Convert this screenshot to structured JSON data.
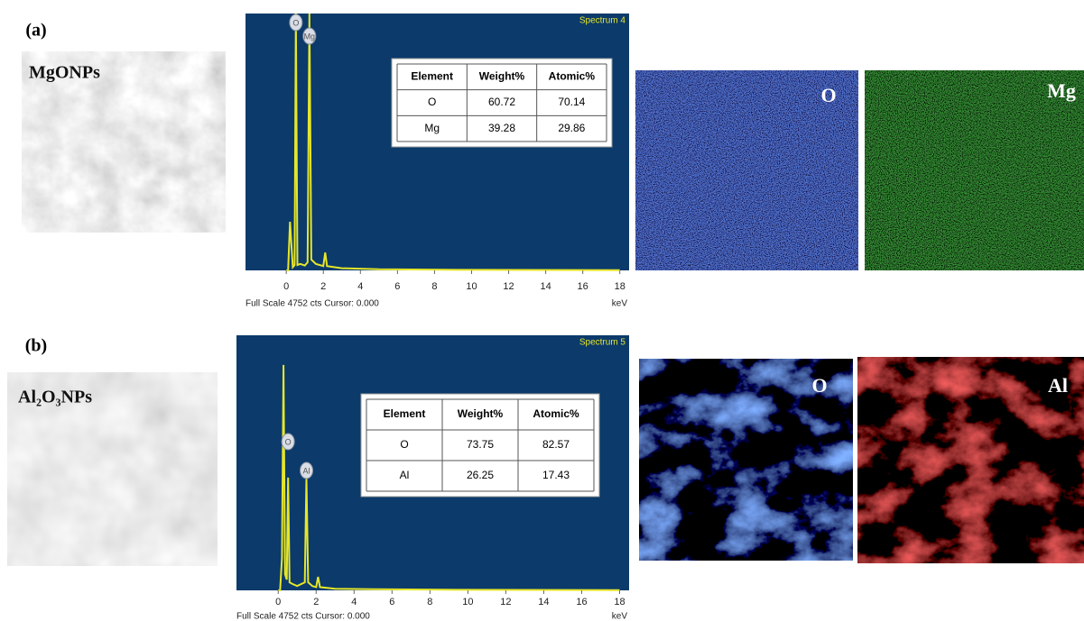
{
  "chart_data": [
    {
      "type": "line",
      "title": "Spectrum 4",
      "xlabel": "keV",
      "footer": "Full Scale 4752 cts Cursor: 0.000",
      "color": "#e6e62a",
      "x": [
        0,
        0.1,
        0.2,
        0.35,
        0.45,
        0.52,
        0.6,
        0.75,
        1.0,
        1.15,
        1.25,
        1.35,
        1.6,
        2.0,
        2.1,
        2.2,
        3,
        5,
        10,
        18
      ],
      "values": [
        0,
        0,
        900,
        60,
        100,
        4752,
        100,
        120,
        90,
        150,
        4752,
        200,
        120,
        80,
        330,
        80,
        40,
        20,
        10,
        5
      ],
      "xlim": [
        -2.2,
        18.5
      ],
      "ylim": [
        0,
        4752
      ],
      "xticks": [
        0,
        2,
        4,
        6,
        8,
        10,
        12,
        14,
        16,
        18
      ],
      "peaks": [
        {
          "label": "O",
          "x": 0.52
        },
        {
          "label": "Mg",
          "x": 1.25
        }
      ]
    },
    {
      "type": "line",
      "title": "Spectrum 5",
      "xlabel": "keV",
      "footer": "Full Scale 4752 cts Cursor: 0.000",
      "color": "#e6e62a",
      "x": [
        0,
        0.1,
        0.2,
        0.28,
        0.36,
        0.45,
        0.52,
        0.6,
        0.75,
        1.0,
        1.4,
        1.49,
        1.58,
        1.8,
        2.0,
        2.1,
        2.2,
        3,
        5,
        10,
        18
      ],
      "values": [
        0,
        0,
        600,
        4200,
        300,
        200,
        2100,
        150,
        120,
        80,
        150,
        2100,
        150,
        80,
        60,
        250,
        60,
        30,
        20,
        10,
        5
      ],
      "xlim": [
        -2.2,
        18.5
      ],
      "ylim": [
        0,
        4752
      ],
      "xticks": [
        0,
        2,
        4,
        6,
        8,
        10,
        12,
        14,
        16,
        18
      ],
      "peaks": [
        {
          "label": "O",
          "x": 0.52
        },
        {
          "label": "Al",
          "x": 1.49
        }
      ]
    }
  ],
  "panels": [
    {
      "label": "(a)",
      "sample": "MgONPs",
      "table": {
        "columns": [
          "Element",
          "Weight%",
          "Atomic%"
        ],
        "rows": [
          [
            "O",
            60.72,
            70.14
          ],
          [
            "Mg",
            39.28,
            29.86
          ]
        ]
      },
      "maps": [
        "O",
        "Mg"
      ]
    },
    {
      "label": "(b)",
      "sample": "Al₂O₃NPs",
      "table": {
        "columns": [
          "Element",
          "Weight%",
          "Atomic%"
        ],
        "rows": [
          [
            "O",
            73.75,
            82.57
          ],
          [
            "Al",
            26.25,
            17.43
          ]
        ]
      },
      "maps": [
        "O",
        "Al"
      ]
    }
  ]
}
